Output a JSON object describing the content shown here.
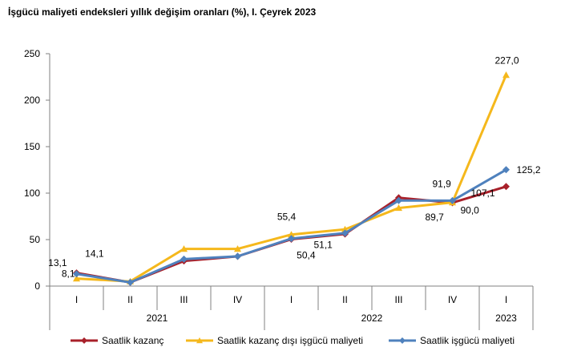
{
  "title": "İşgücü maliyeti endeksleri yıllık değişim oranları (%), I. Çeyrek 2023",
  "chart_data": {
    "type": "line",
    "title": "İşgücü maliyeti endeksleri yıllık değişim oranları (%), I. Çeyrek 2023",
    "categories": [
      "I",
      "II",
      "III",
      "IV",
      "I",
      "II",
      "III",
      "IV",
      "I"
    ],
    "years": [
      {
        "label": "2021",
        "span": 4
      },
      {
        "label": "2022",
        "span": 4
      },
      {
        "label": "2023",
        "span": 1
      }
    ],
    "ylim": [
      0,
      250
    ],
    "yticks": [
      0,
      50,
      100,
      150,
      200,
      250
    ],
    "grid": false,
    "legend_position": "bottom",
    "series": [
      {
        "name": "Saatlik kazanç",
        "color": "#a8202a",
        "values": [
          14.1,
          4,
          27,
          32,
          50.4,
          56,
          95,
          89.7,
          107.1
        ],
        "labels": [
          "14,1",
          null,
          null,
          null,
          "50,4",
          null,
          null,
          "89,7",
          "107,1"
        ]
      },
      {
        "name": "Saatlik kazanç dışı işgücü maliyeti",
        "color": "#f5b81c",
        "values": [
          8.1,
          5,
          40,
          40,
          55.4,
          61,
          84,
          90.0,
          227.0
        ],
        "labels": [
          "8,1",
          null,
          null,
          null,
          "55,4",
          null,
          null,
          "90,0",
          "227,0"
        ]
      },
      {
        "name": "Saatlik işgücü maliyeti",
        "color": "#4f81bd",
        "values": [
          13.1,
          4,
          29,
          32,
          51.1,
          57,
          92,
          91.9,
          125.2
        ],
        "labels": [
          "13,1",
          null,
          null,
          null,
          "51,1",
          null,
          null,
          "91,9",
          "125,2"
        ]
      }
    ]
  }
}
